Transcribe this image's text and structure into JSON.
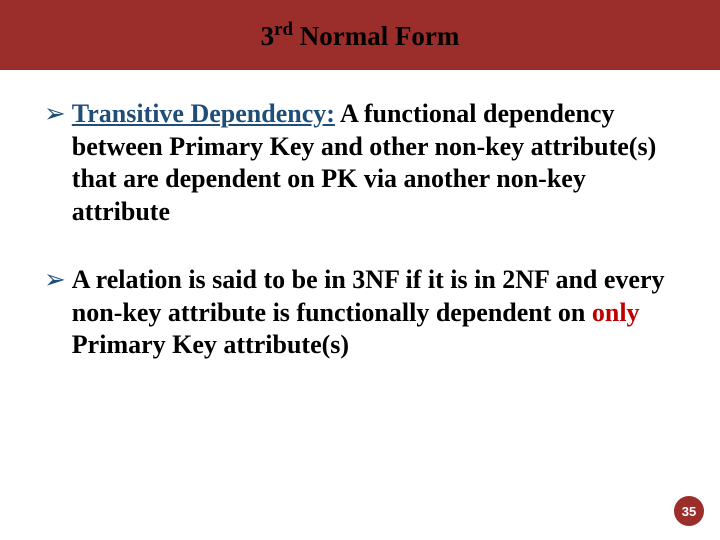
{
  "title": {
    "prefix": "3",
    "superscript": "rd",
    "rest": " Normal Form",
    "background_color": "#9b2d2a",
    "text_color": "#000000",
    "fontsize": 27
  },
  "bullets": [
    {
      "marker": "➢",
      "marker_color": "#1f4e79",
      "term": "Transitive Dependency:",
      "term_color": "#1f4e79",
      "rest_before_only": " A functional dependency between Primary Key and other non-key attribute(s) that are dependent on PK via another non-key attribute",
      "only_word": "",
      "only_color": "",
      "rest_after_only": ""
    },
    {
      "marker": "➢",
      "marker_color": "#1f4e79",
      "term": "",
      "term_color": "",
      "rest_before_only": "A relation is said to be in 3NF if it is in 2NF and every non-key attribute is functionally dependent on ",
      "only_word": "only",
      "only_color": "#c00000",
      "rest_after_only": " Primary Key attribute(s)"
    }
  ],
  "page_number": {
    "value": "35",
    "background_color": "#9b2d2a",
    "text_color": "#ffffff"
  },
  "body_background": "#ffffff"
}
